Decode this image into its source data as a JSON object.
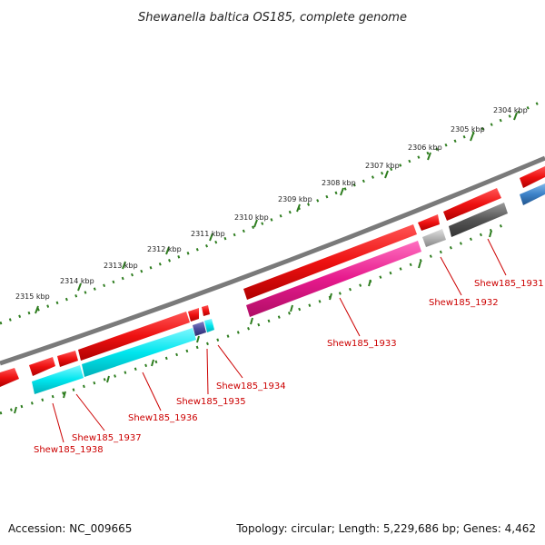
{
  "title": "Shewanella baltica OS185, complete genome",
  "footer": {
    "accession": "Accession: NC_009665",
    "summary": "Topology: circular; Length: 5,229,686 bp; Genes: 4,462"
  },
  "colors": {
    "background": "#ffffff",
    "backbone": "#808080",
    "scale_dots": "#2e7d1f",
    "label_red": "#cc0000",
    "gene_red": "#ee1111",
    "gene_cyan": "#00e6ee",
    "gene_magenta": "#e6198c",
    "gene_navy": "#4b4b9b",
    "gene_gray": "#555555",
    "gene_lightgray": "#b4b4b4",
    "gene_blue": "#3c82c8"
  },
  "scale_labels": [
    "2304 kbp",
    "2305 kbp",
    "2306 kbp",
    "2307 kbp",
    "2308 kbp",
    "2309 kbp",
    "2310 kbp",
    "2311 kbp",
    "2312 kbp",
    "2313 kbp",
    "2314 kbp",
    "2315 kbp"
  ],
  "gene_labels": [
    "Shew185_1931",
    "Shew185_1932",
    "Shew185_1933",
    "Shew185_1934",
    "Shew185_1935",
    "Shew185_1936",
    "Shew185_1937",
    "Shew185_1938"
  ]
}
